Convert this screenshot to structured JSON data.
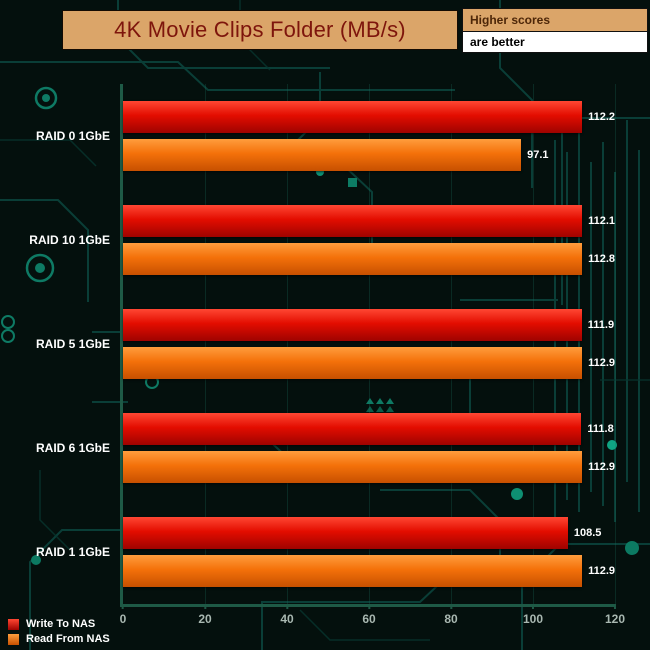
{
  "title": "4K Movie Clips Folder (MB/s)",
  "note": {
    "line1": "Higher scores",
    "line2": "are better"
  },
  "colors": {
    "panel_tan": "#dba569",
    "title_text": "#7e150c",
    "axis": "#1e5a46",
    "tick_text": "#a9b8b1",
    "label_text": "#ffffff",
    "write_red": "#e30d00",
    "read_orange": "#f4710a",
    "background": "#04100d"
  },
  "chart_data": {
    "type": "bar",
    "orientation": "horizontal",
    "title": "4K Movie Clips Folder (MB/s)",
    "categories": [
      "RAID 0 1GbE",
      "RAID 10 1GbE",
      "RAID 5 1GbE",
      "RAID 6 1GbE",
      "RAID 1 1GbE"
    ],
    "series": [
      {
        "name": "Write To NAS",
        "values": [
          112.2,
          112.1,
          111.9,
          111.8,
          108.5
        ],
        "gradient": [
          "#ff4733",
          "#e30d00",
          "#9f0300"
        ]
      },
      {
        "name": "Read From NAS",
        "values": [
          97.1,
          112.8,
          112.9,
          112.9,
          112.9
        ],
        "gradient": [
          "#ff9d3d",
          "#f4710a",
          "#c75000"
        ]
      }
    ],
    "xlabel": "",
    "ylabel": "",
    "xlim": [
      0,
      120
    ],
    "xticks": [
      0,
      20,
      40,
      60,
      80,
      100,
      120
    ],
    "grid": "vertical-faint",
    "legend_position": "bottom-left",
    "value_labels": true,
    "value_label_decimals": 1
  }
}
